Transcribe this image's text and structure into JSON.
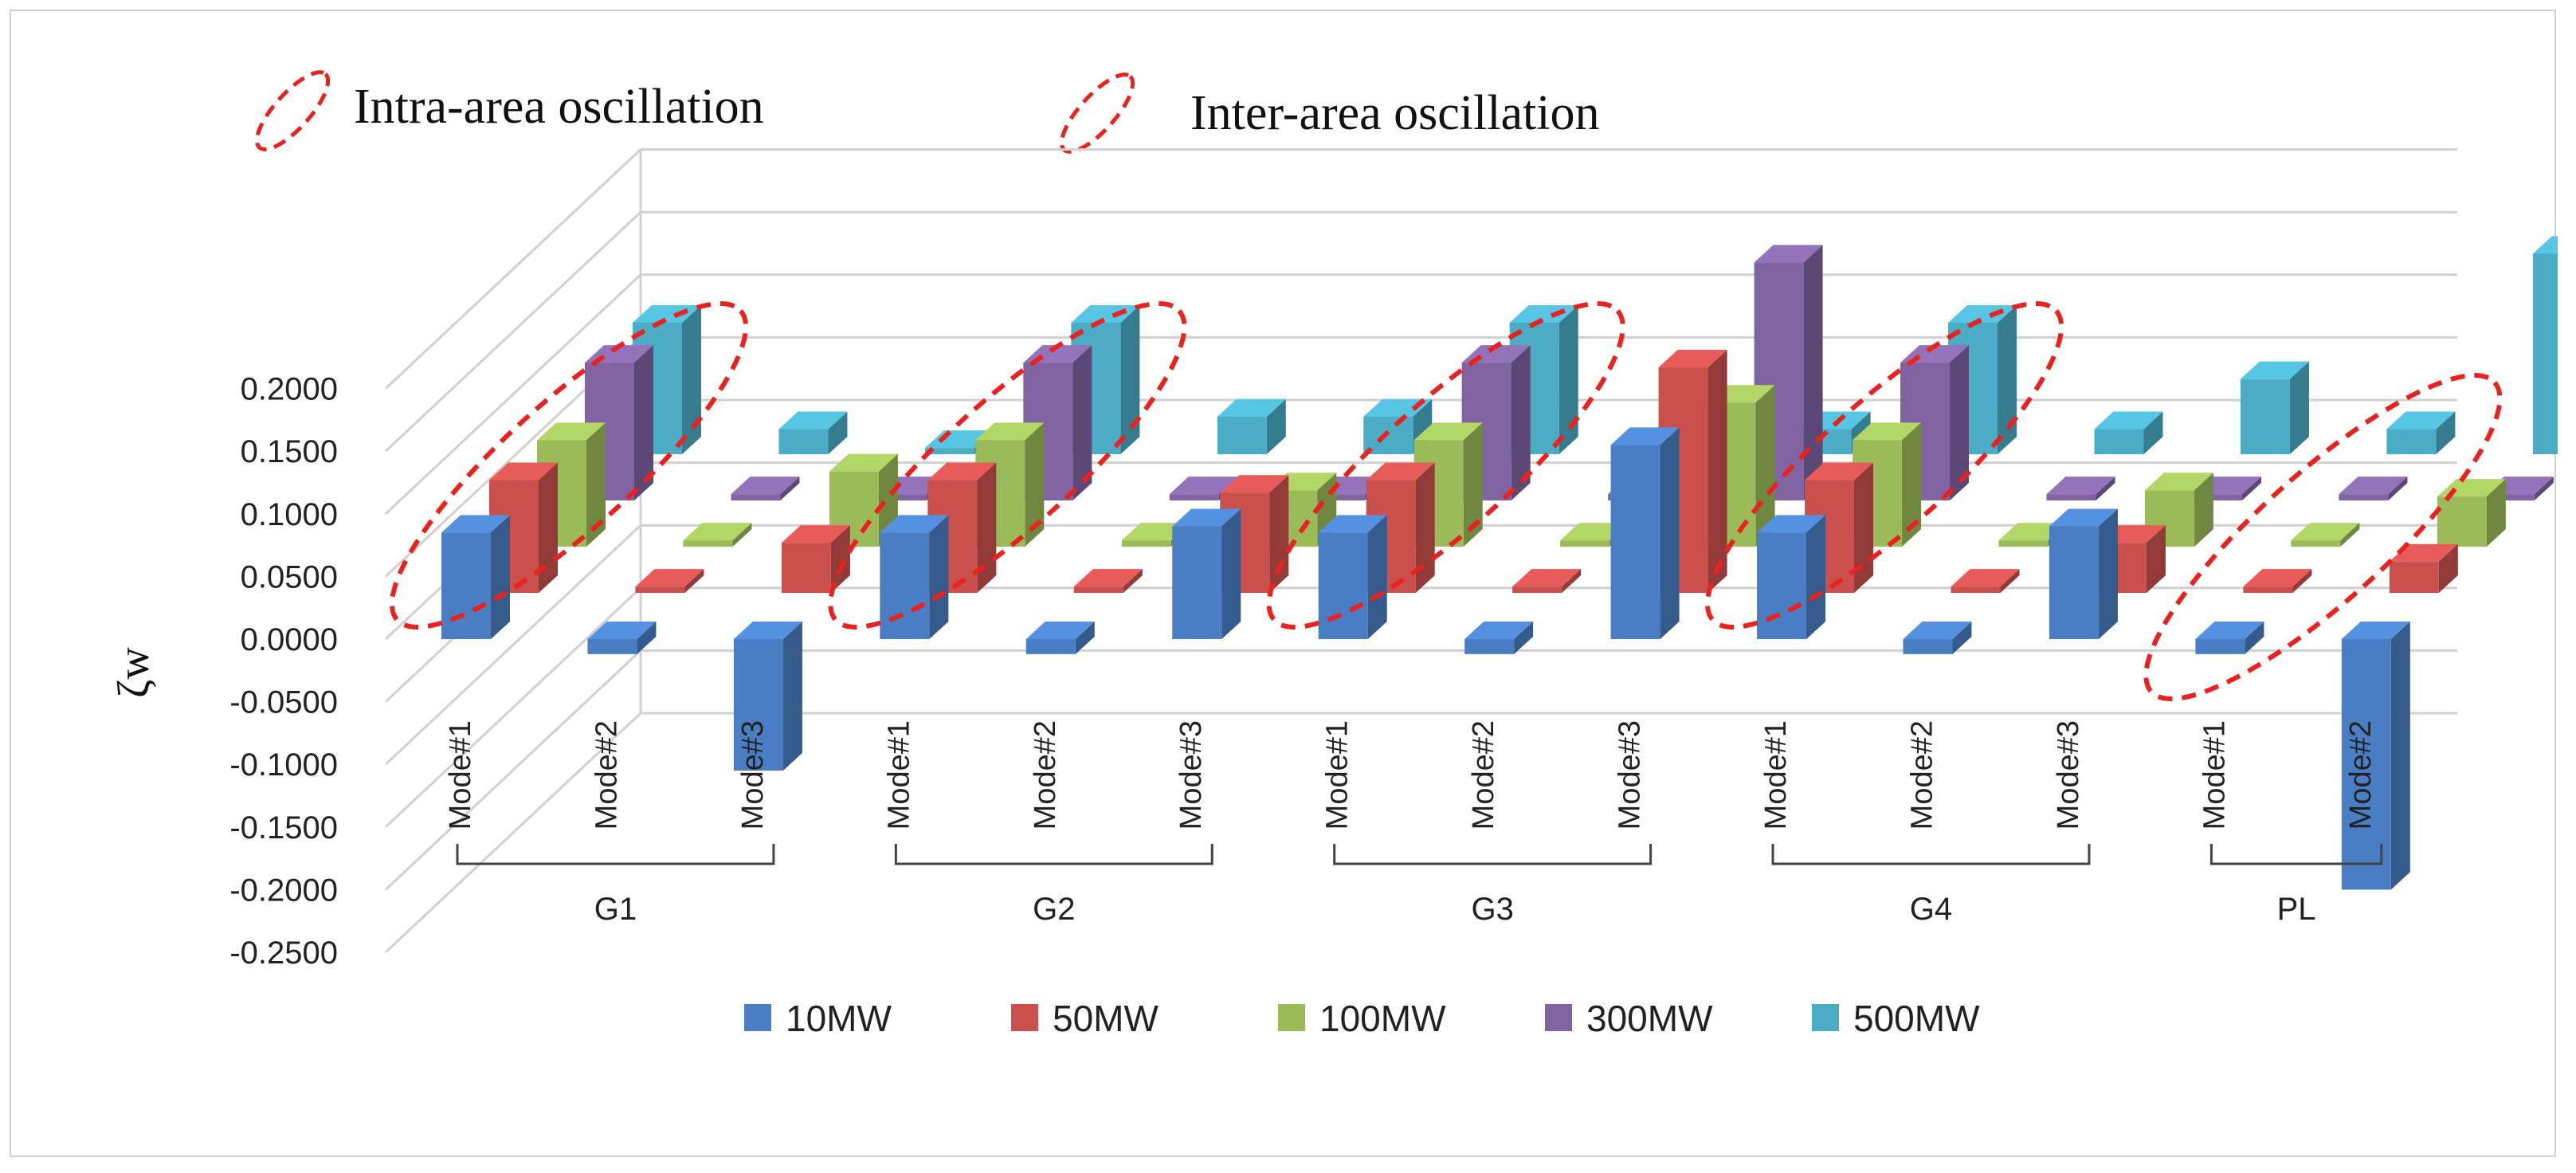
{
  "annotations": {
    "intra_label": "Intra-area oscillation",
    "inter_label": "Inter-area oscillation"
  },
  "chart_data": {
    "type": "bar",
    "subtype": "3d-clustered-column",
    "ylabel": "ζw",
    "ylim": [
      -0.25,
      0.2
    ],
    "yticks": [
      "0.2000",
      "0.1500",
      "0.1000",
      "0.0500",
      "0.0000",
      "-0.0500",
      "-0.1000",
      "-0.1500",
      "-0.2000",
      "-0.2500"
    ],
    "groups": [
      {
        "name": "G1",
        "modes": [
          "Mode#1",
          "Mode#2",
          "Mode#3"
        ]
      },
      {
        "name": "G2",
        "modes": [
          "Mode#1",
          "Mode#2",
          "Mode#3"
        ]
      },
      {
        "name": "G3",
        "modes": [
          "Mode#1",
          "Mode#2",
          "Mode#3"
        ]
      },
      {
        "name": "G4",
        "modes": [
          "Mode#1",
          "Mode#2",
          "Mode#3"
        ]
      },
      {
        "name": "PL",
        "modes": [
          "Mode#1",
          "Mode#2"
        ]
      }
    ],
    "categories": [
      "G1 Mode#1",
      "G1 Mode#2",
      "G1 Mode#3",
      "G2 Mode#1",
      "G2 Mode#2",
      "G2 Mode#3",
      "G3 Mode#1",
      "G3 Mode#2",
      "G3 Mode#3",
      "G4 Mode#1",
      "G4 Mode#2",
      "G4 Mode#3",
      "PL Mode#1",
      "PL Mode#2"
    ],
    "series": [
      {
        "name": "10MW",
        "color": "#4A7EC4",
        "values": [
          0.085,
          -0.012,
          -0.105,
          0.085,
          -0.012,
          0.09,
          0.085,
          -0.012,
          0.155,
          0.085,
          -0.012,
          0.09,
          -0.012,
          -0.2
        ]
      },
      {
        "name": "50MW",
        "color": "#C9504D",
        "values": [
          0.09,
          0.005,
          0.04,
          0.09,
          0.005,
          0.08,
          0.09,
          0.005,
          0.18,
          0.09,
          0.005,
          0.04,
          0.005,
          0.025
        ]
      },
      {
        "name": "100MW",
        "color": "#9BBB59",
        "values": [
          0.085,
          0.005,
          0.06,
          0.085,
          0.005,
          0.045,
          0.085,
          0.005,
          0.115,
          0.085,
          0.005,
          0.045,
          0.005,
          0.04
        ]
      },
      {
        "name": "300MW",
        "color": "#8064A2",
        "values": [
          0.11,
          0.005,
          0.005,
          0.11,
          0.005,
          0.005,
          0.11,
          0.005,
          0.19,
          0.11,
          0.005,
          0.005,
          0.005,
          0.005
        ]
      },
      {
        "name": "500MW",
        "color": "#4BACC6",
        "values": [
          0.105,
          0.02,
          0.005,
          0.105,
          0.03,
          0.03,
          0.105,
          0.02,
          0.02,
          0.105,
          0.02,
          0.06,
          0.02,
          0.16
        ]
      }
    ],
    "highlights": [
      {
        "style": "intra",
        "target": "G1 Mode#1"
      },
      {
        "style": "intra",
        "target": "G2 Mode#1"
      },
      {
        "style": "intra",
        "target": "G3 Mode#1"
      },
      {
        "style": "intra",
        "target": "G4 Mode#1"
      },
      {
        "style": "inter",
        "target": "PL Mode#1"
      }
    ]
  }
}
